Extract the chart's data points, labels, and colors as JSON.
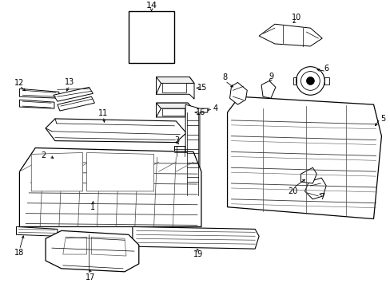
{
  "background_color": "#ffffff",
  "line_color": "#000000",
  "fig_width": 4.89,
  "fig_height": 3.6,
  "dpi": 100
}
